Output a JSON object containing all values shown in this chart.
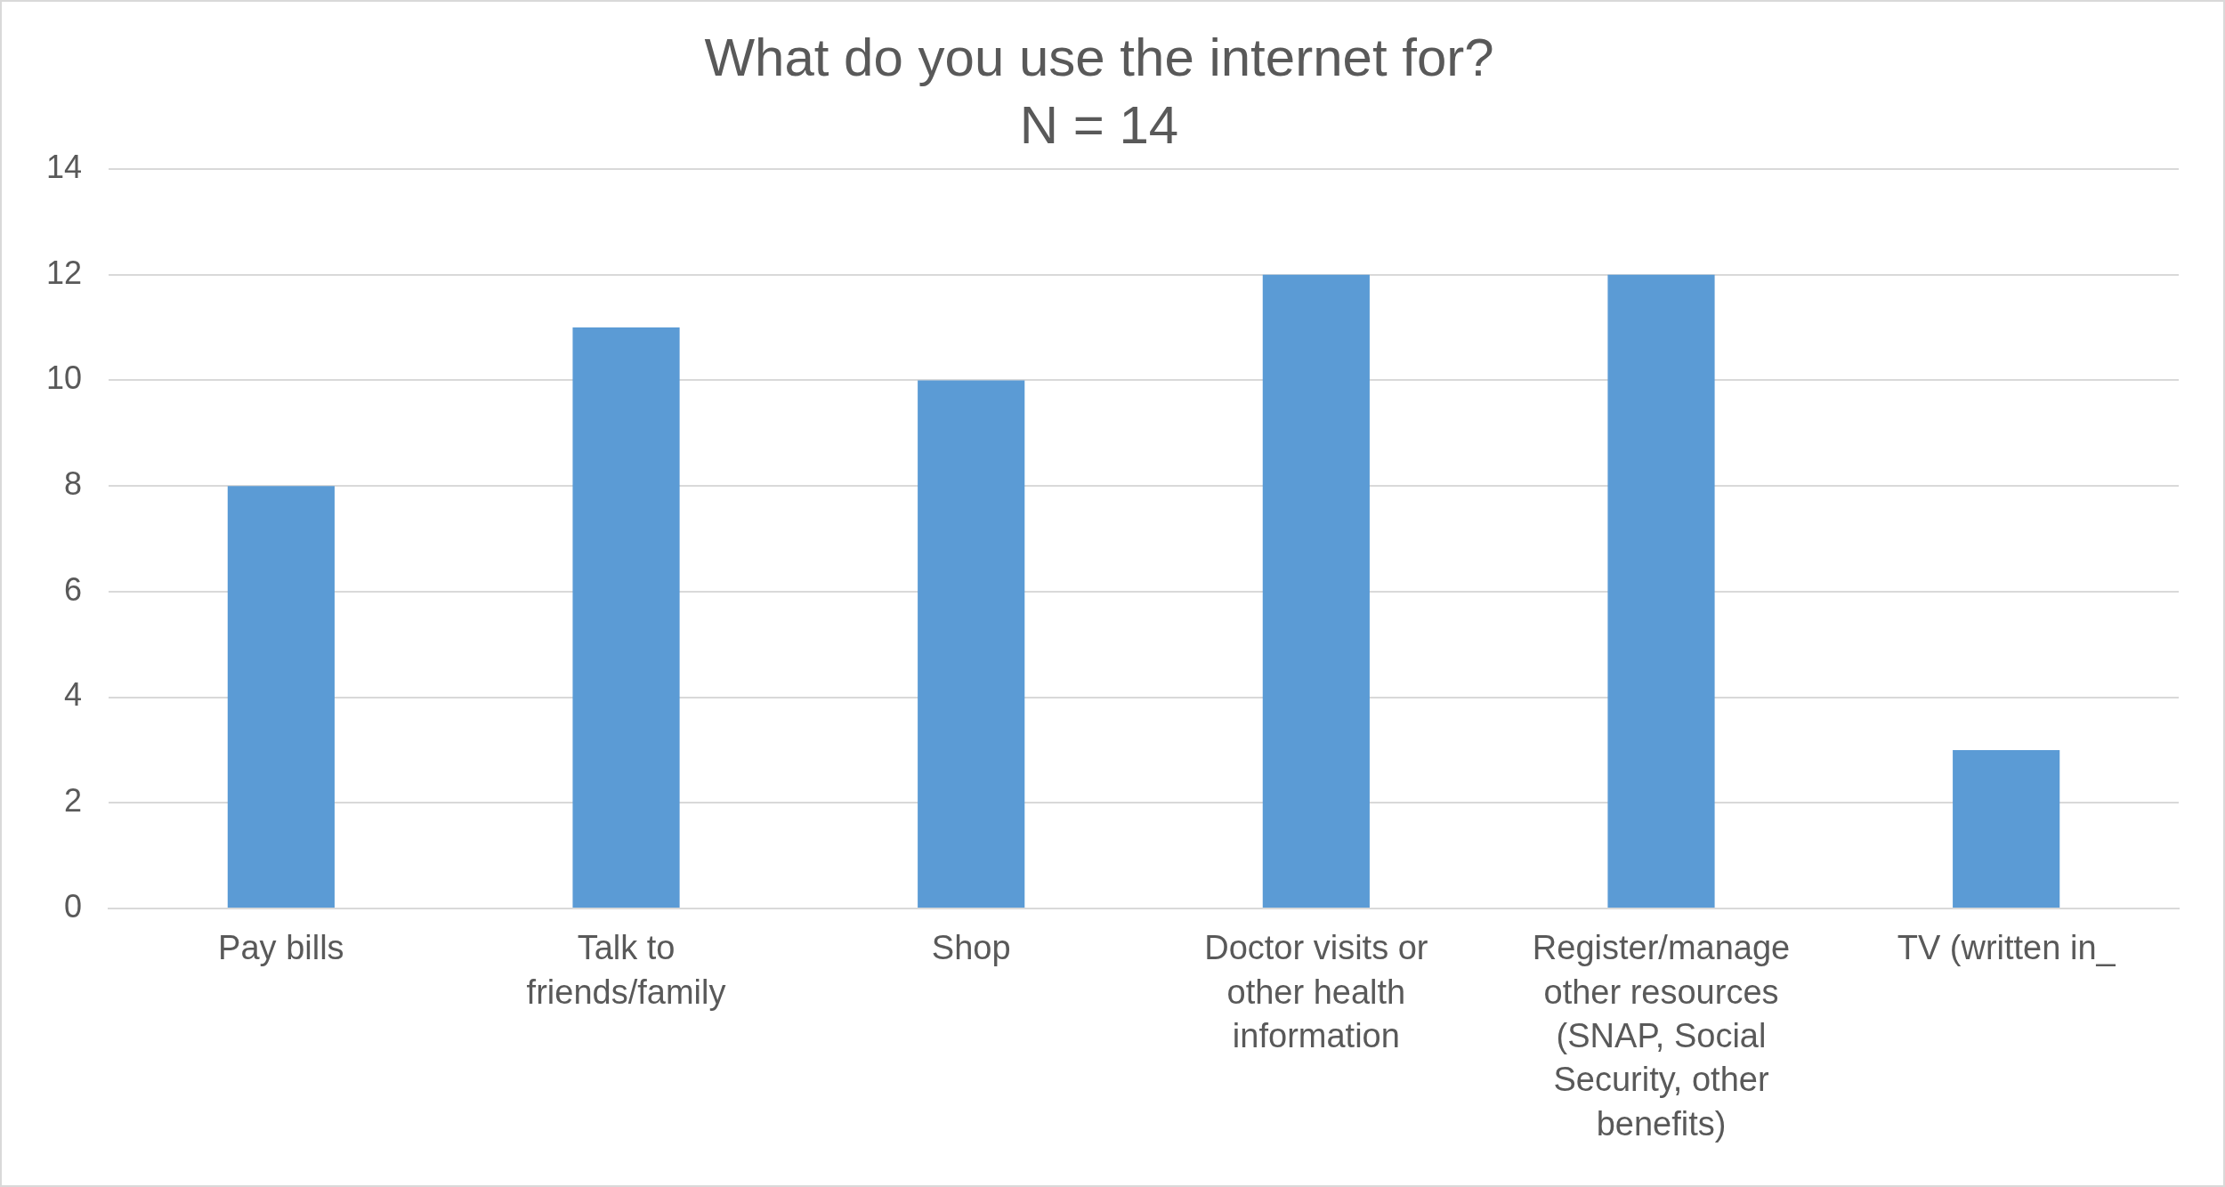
{
  "chart_data": {
    "type": "bar",
    "title": "What do you use the internet for?",
    "subtitle": "N = 14",
    "categories": [
      "Pay bills",
      "Talk to friends/family",
      "Shop",
      "Doctor visits or other health information",
      "Register/manage other resources (SNAP, Social Security, other benefits)",
      "TV (written in_"
    ],
    "values": [
      8,
      11,
      10,
      12,
      12,
      3
    ],
    "color": "#5b9bd5",
    "ylim": [
      0,
      14
    ],
    "yticks": [
      0,
      2,
      4,
      6,
      8,
      10,
      12,
      14
    ],
    "grid": "y",
    "legend": false
  }
}
